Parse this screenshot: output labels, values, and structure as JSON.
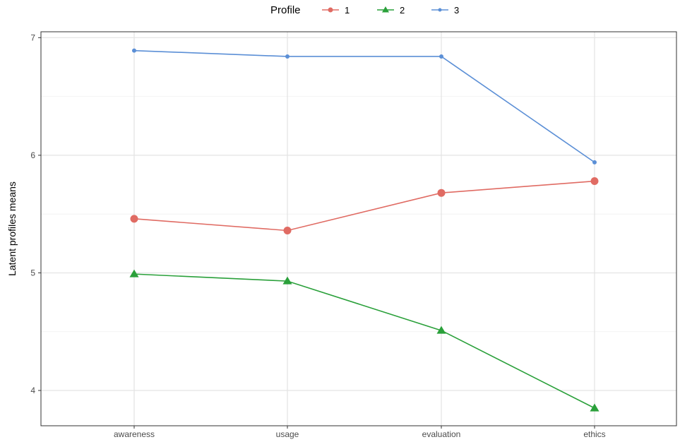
{
  "chart_data": {
    "type": "line",
    "categories": [
      "awareness",
      "usage",
      "evaluation",
      "ethics"
    ],
    "ylabel": "Latent profiles means",
    "xlabel": "",
    "ylim": [
      3.7,
      7.05
    ],
    "yticks": [
      4,
      5,
      6,
      7
    ],
    "grid": true,
    "legend": {
      "title": "Profile",
      "position": "top"
    },
    "series": [
      {
        "name": "1",
        "color": "#e06b63",
        "marker": "circle",
        "values": [
          5.46,
          5.36,
          5.68,
          5.78
        ]
      },
      {
        "name": "2",
        "color": "#2aa03a",
        "marker": "triangle",
        "values": [
          4.99,
          4.93,
          4.51,
          3.85
        ]
      },
      {
        "name": "3",
        "color": "#5b8fd6",
        "marker": "circle-small",
        "values": [
          6.89,
          6.84,
          6.84,
          5.94
        ]
      }
    ]
  }
}
